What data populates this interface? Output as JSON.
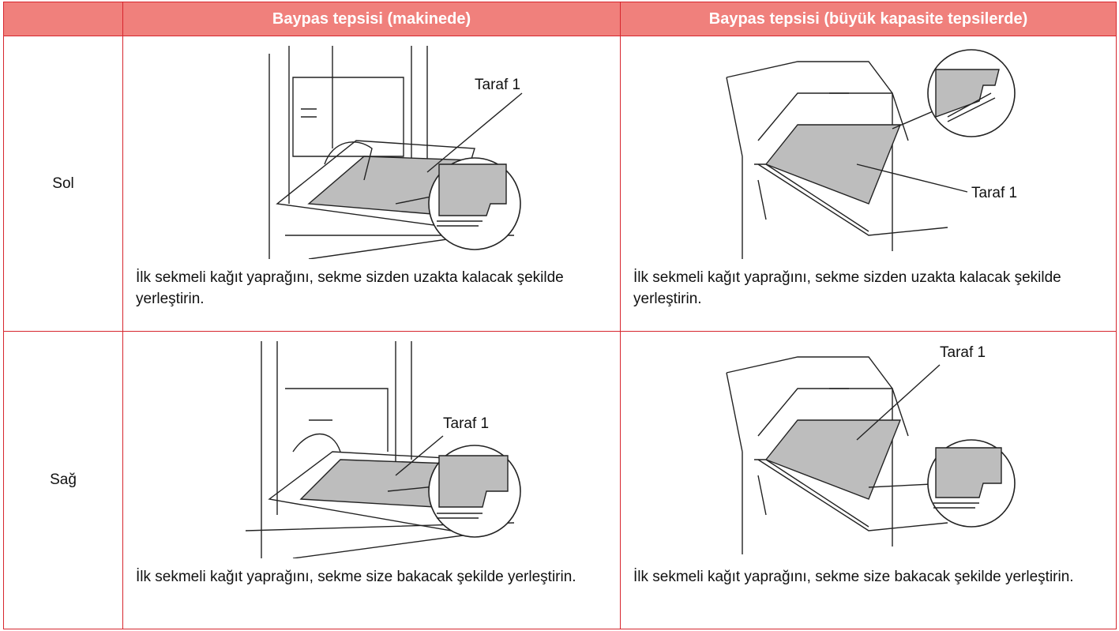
{
  "table": {
    "header": [
      "Baypas tepsisi (makinede)",
      "Baypas tepsisi (büyük kapasite tepsilerde)"
    ],
    "rows": [
      {
        "label": "Sol",
        "cells": [
          {
            "callout": "Taraf 1",
            "caption": "İlk sekmeli kağıt yaprağını, sekme sizden uzakta kalacak şekilde yerleştirin."
          },
          {
            "callout": "Taraf 1",
            "caption": "İlk sekmeli kağıt yaprağını, sekme sizden uzakta kalacak şekilde yerleştirin."
          }
        ]
      },
      {
        "label": "Sağ",
        "cells": [
          {
            "callout": "Taraf 1",
            "caption": "İlk sekmeli kağıt yaprağını, sekme size bakacak şekilde yerleştirin."
          },
          {
            "callout": "Taraf 1",
            "caption": "İlk sekmeli kağıt yaprağını, sekme size bakacak şekilde yerleştirin."
          }
        ]
      }
    ]
  }
}
